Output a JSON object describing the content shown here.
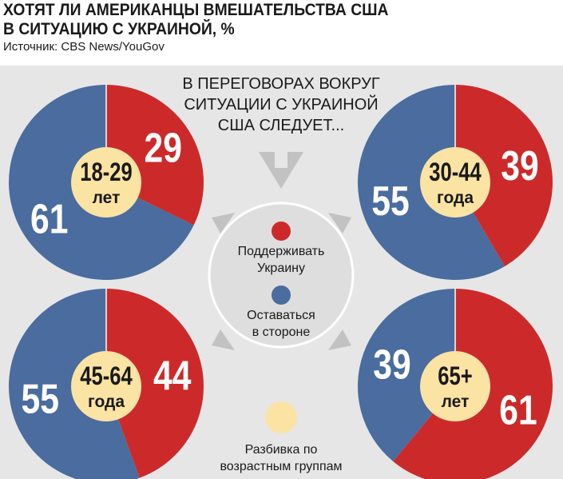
{
  "title_lines": [
    "ХОТЯТ ЛИ АМЕРИКАНЦЫ ВМЕШАТЕЛЬСТВА США",
    "В СИТУАЦИЮ С УКРАИНОЙ, %"
  ],
  "source": "Источник: CBS News/YouGov",
  "question_lines": [
    "В ПЕРЕГОВОРАХ ВОКРУГ",
    "СИТУАЦИИ С УКРАИНОЙ",
    "США СЛЕДУЕТ..."
  ],
  "legend": {
    "support": {
      "lines": [
        "Поддерживать",
        "Украину"
      ],
      "color": "#cc2a2a"
    },
    "stay_out": {
      "lines": [
        "Оставаться",
        "в стороне"
      ],
      "color": "#4a6c9e"
    },
    "age_groups": {
      "lines": [
        "Разбивка по",
        "возрастным группам"
      ],
      "color": "#fbe3a3"
    }
  },
  "colors": {
    "support": "#cc2a2a",
    "stay_out": "#4a6c9e",
    "center": "#fbe3a3",
    "panel": "#e6e6e6",
    "arrow": "#c2c2c2",
    "legend_circle": "#dedede"
  },
  "chart_data": [
    {
      "type": "pie",
      "group_lines": [
        "18-29",
        "лет"
      ],
      "values": {
        "support": 29,
        "stay_out": 61
      }
    },
    {
      "type": "pie",
      "group_lines": [
        "30-44",
        "года"
      ],
      "values": {
        "support": 39,
        "stay_out": 55
      }
    },
    {
      "type": "pie",
      "group_lines": [
        "45-64",
        "года"
      ],
      "values": {
        "support": 44,
        "stay_out": 55
      }
    },
    {
      "type": "pie",
      "group_lines": [
        "65+",
        "лет"
      ],
      "values": {
        "support": 61,
        "stay_out": 39
      }
    }
  ]
}
